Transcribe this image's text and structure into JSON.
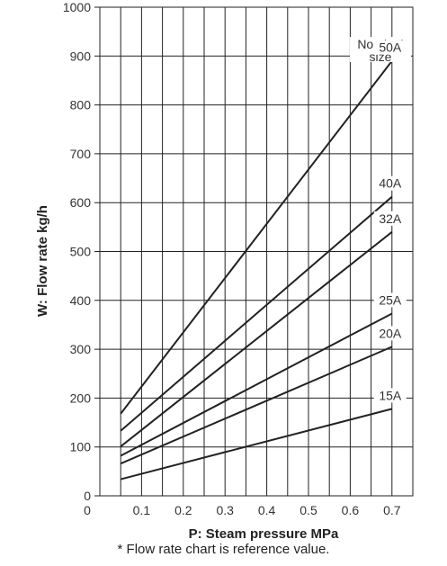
{
  "chart_data": {
    "type": "line",
    "xlabel": "P: Steam pressure MPa",
    "ylabel": "W: Flow rate kg/h",
    "xlim": [
      0,
      0.75
    ],
    "ylim": [
      0,
      1000
    ],
    "x_ticks": [
      "0",
      "0.1",
      "0.2",
      "0.3",
      "0.4",
      "0.5",
      "0.6",
      "0.7"
    ],
    "y_ticks": [
      "0",
      "100",
      "200",
      "300",
      "400",
      "500",
      "600",
      "700",
      "800",
      "900",
      "1000"
    ],
    "grid": true,
    "legend_header": [
      "Nominal",
      "size"
    ],
    "series": [
      {
        "name": "50A",
        "x": [
          0.05,
          0.7
        ],
        "y": [
          168,
          890
        ]
      },
      {
        "name": "40A",
        "x": [
          0.05,
          0.7
        ],
        "y": [
          133,
          612
        ]
      },
      {
        "name": "32A",
        "x": [
          0.05,
          0.7
        ],
        "y": [
          101,
          540
        ]
      },
      {
        "name": "25A",
        "x": [
          0.05,
          0.7
        ],
        "y": [
          82,
          373
        ]
      },
      {
        "name": "20A",
        "x": [
          0.05,
          0.7
        ],
        "y": [
          66,
          305
        ]
      },
      {
        "name": "15A",
        "x": [
          0.05,
          0.7
        ],
        "y": [
          34,
          178
        ]
      }
    ]
  },
  "footnote": "* Flow rate chart is reference value."
}
